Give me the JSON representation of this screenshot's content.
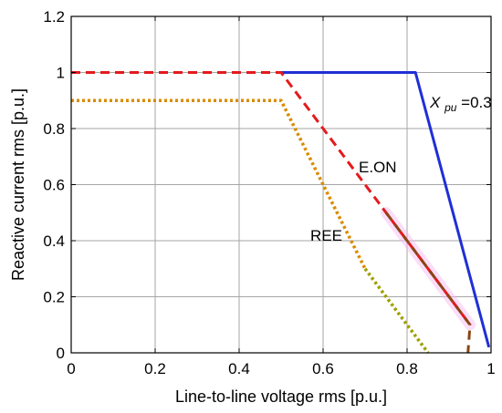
{
  "chart_data": {
    "type": "line",
    "xlabel": "Line-to-line voltage rms [p.u.]",
    "ylabel": "Reactive current rms [p.u.]",
    "xlim": [
      0,
      1
    ],
    "ylim": [
      0,
      1.2
    ],
    "x_ticks": [
      0,
      0.2,
      0.4,
      0.6,
      0.8,
      1
    ],
    "x_tick_labels": [
      "0",
      "0.2",
      "0.4",
      "0.6",
      "0.8",
      "1"
    ],
    "y_ticks": [
      0,
      0.2,
      0.4,
      0.6,
      0.8,
      1,
      1.2
    ],
    "y_tick_labels": [
      "0",
      "0.2",
      "0.4",
      "0.6",
      "0.8",
      "1",
      "1.2"
    ],
    "grid": true,
    "series": [
      {
        "label_main": "X",
        "label_sub": "pu",
        "label_tail": "=0.3",
        "color": "#1f2fd6",
        "style": "solid",
        "points": [
          [
            0.5,
            1.0
          ],
          [
            0.82,
            1.0
          ],
          [
            0.995,
            0.02
          ]
        ]
      },
      {
        "label_main": "E.ON",
        "color": "#e41a1c",
        "style": "dashed",
        "points": [
          [
            0.0,
            1.0
          ],
          [
            0.5,
            1.0
          ],
          [
            0.75,
            0.5
          ],
          [
            0.95,
            0.1
          ]
        ]
      },
      {
        "color": "#8b4513",
        "style": "dashed",
        "points": [
          [
            0.75,
            0.5
          ],
          [
            0.95,
            0.1
          ],
          [
            0.945,
            0.0
          ]
        ]
      },
      {
        "label_main": "REE",
        "color": "#d98c00",
        "style": "dotted",
        "points": [
          [
            0.0,
            0.9
          ],
          [
            0.5,
            0.9
          ],
          [
            0.6,
            0.6
          ],
          [
            0.7,
            0.3
          ]
        ]
      },
      {
        "color": "#a0a000",
        "style": "dotted",
        "points": [
          [
            0.7,
            0.3
          ],
          [
            0.85,
            0.0
          ]
        ]
      }
    ],
    "colors": {
      "grid": "#a6a6a6",
      "highlight": "#f4b3f0"
    }
  }
}
